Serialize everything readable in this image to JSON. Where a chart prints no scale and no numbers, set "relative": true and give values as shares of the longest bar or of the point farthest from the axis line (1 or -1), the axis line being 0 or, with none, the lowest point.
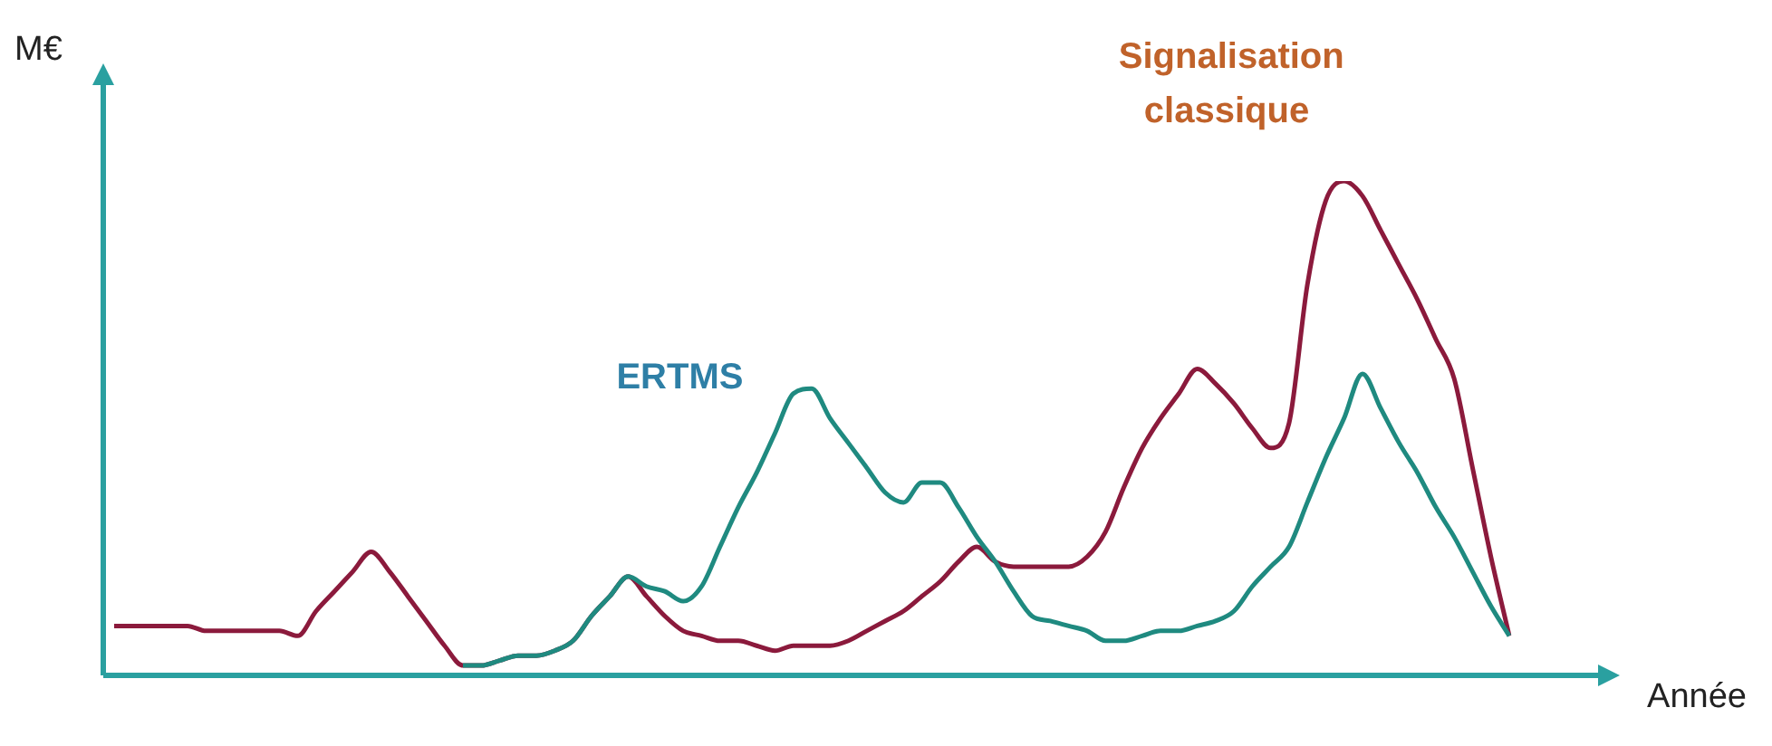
{
  "chart_data": {
    "type": "line",
    "relative": true,
    "xlabel": "Année",
    "ylabel": "M€",
    "legend": false,
    "grid": false,
    "marker": "none",
    "categories": [
      null,
      null,
      null,
      null,
      null,
      null,
      null,
      null,
      null,
      null,
      null,
      null,
      null,
      null,
      null,
      null,
      null,
      null,
      null,
      null,
      null,
      null,
      null,
      null,
      null,
      null,
      null,
      null,
      null,
      null,
      null,
      null,
      null,
      null,
      null,
      null,
      null,
      null,
      null,
      null,
      null,
      null,
      null,
      null,
      null,
      null,
      null,
      null,
      null,
      null,
      null,
      null,
      null,
      null,
      null,
      null,
      null,
      null,
      null,
      null,
      null,
      null,
      null,
      null,
      null,
      null,
      null,
      null,
      null,
      null,
      null,
      null,
      null,
      null,
      null,
      null,
      null
    ],
    "series": [
      {
        "name": "ERTMS",
        "color": "#1f8a80",
        "values": [
          null,
          null,
          null,
          null,
          null,
          null,
          null,
          null,
          null,
          null,
          null,
          null,
          null,
          null,
          null,
          null,
          null,
          null,
          null,
          0.02,
          0.02,
          0.03,
          0.04,
          0.04,
          0.05,
          0.07,
          0.12,
          0.16,
          0.2,
          0.18,
          0.17,
          0.15,
          0.18,
          0.26,
          0.34,
          0.41,
          0.49,
          0.57,
          0.58,
          0.52,
          0.47,
          0.42,
          0.37,
          0.35,
          0.39,
          0.39,
          0.34,
          0.28,
          0.23,
          0.17,
          0.12,
          0.11,
          0.1,
          0.09,
          0.07,
          0.07,
          0.08,
          0.09,
          0.09,
          0.1,
          0.11,
          0.13,
          0.18,
          0.22,
          0.26,
          0.35,
          0.44,
          0.52,
          0.61,
          0.54,
          0.47,
          0.41,
          0.34,
          0.28,
          0.21,
          0.14,
          0.08
        ]
      },
      {
        "name": "Signalisation classique",
        "color": "#8b1a3c",
        "values": [
          0.1,
          0.1,
          0.1,
          0.1,
          0.1,
          0.09,
          0.09,
          0.09,
          0.09,
          0.09,
          0.08,
          0.13,
          0.17,
          0.21,
          0.25,
          0.21,
          0.16,
          0.11,
          0.06,
          0.02,
          0.02,
          0.03,
          0.04,
          0.04,
          0.05,
          0.07,
          0.12,
          0.16,
          0.2,
          0.16,
          0.12,
          0.09,
          0.08,
          0.07,
          0.07,
          0.06,
          0.05,
          0.06,
          0.06,
          0.06,
          0.07,
          0.09,
          0.11,
          0.13,
          0.16,
          0.19,
          0.23,
          0.26,
          0.23,
          0.22,
          0.22,
          0.22,
          0.22,
          0.24,
          0.29,
          0.38,
          0.46,
          0.52,
          0.57,
          0.62,
          0.59,
          0.55,
          0.5,
          0.46,
          0.51,
          0.79,
          0.96,
          1,
          0.97,
          0.9,
          0.83,
          0.76,
          0.68,
          0.6,
          0.42,
          0.24,
          0.08
        ]
      }
    ]
  }
}
